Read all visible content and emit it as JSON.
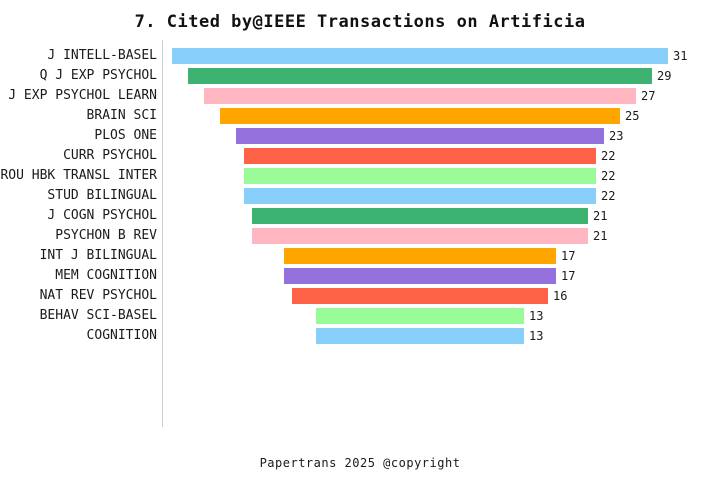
{
  "title": "7. Cited by@IEEE Transactions on Artificia",
  "footer": "Papertrans 2025 @copyright",
  "chart_data": {
    "type": "bar",
    "orientation": "horizontal-centered-funnel",
    "title": "7. Cited by@IEEE Transactions on Artificia",
    "categories": [
      "J INTELL-BASEL",
      "Q J EXP PSYCHOL",
      "J EXP PSYCHOL LEARN",
      "BRAIN SCI",
      "PLOS ONE",
      "CURR PSYCHOL",
      "ROU HBK TRANSL INTER",
      "STUD BILINGUAL",
      "J COGN PSYCHOL",
      "PSYCHON B REV",
      "INT J BILINGUAL",
      "MEM COGNITION",
      "NAT REV PSYCHOL",
      "BEHAV SCI-BASEL",
      "COGNITION"
    ],
    "values": [
      31,
      29,
      27,
      25,
      23,
      22,
      22,
      22,
      21,
      21,
      17,
      17,
      16,
      13,
      13
    ],
    "value_labels": [
      "31",
      "29",
      "27",
      "25",
      "23",
      "22",
      "22",
      "22",
      "21",
      "21",
      "17",
      "17",
      "16",
      "13",
      "13"
    ],
    "bar_colors": [
      "#87CEFA",
      "#3CB371",
      "#FFB6C1",
      "#FFA500",
      "#9370DB",
      "#FF6347",
      "#98FB98",
      "#87CEFA",
      "#3CB371",
      "#FFB6C1",
      "#FFA500",
      "#9370DB",
      "#FF6347",
      "#98FB98",
      "#87CEFA"
    ],
    "color_cycle": [
      "#87CEFA",
      "#3CB371",
      "#FFB6C1",
      "#FFA500",
      "#9370DB",
      "#FF6347",
      "#98FB98"
    ],
    "xlabel": "",
    "ylabel": "",
    "grid": false,
    "legend": false,
    "axis_line_color": "#cfcfcf",
    "value_range": [
      13,
      31
    ]
  }
}
